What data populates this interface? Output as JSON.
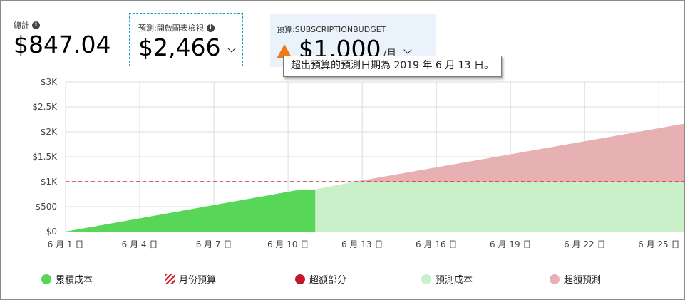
{
  "cards": {
    "total": {
      "label": "總計",
      "value": "$847.04"
    },
    "forecast": {
      "label": "預測:開啟圖表檢視",
      "value": "$2,466"
    },
    "budget": {
      "label": "預算:SUBSCRIPTIONBUDGET",
      "value": "$1,000",
      "unit": "/月"
    }
  },
  "tooltip": "超出預算的預測日期為 2019 年 6 月 13 日。",
  "icons": {
    "info": "info-icon",
    "chevron": "chevron-down-icon",
    "warning": "warning-icon"
  },
  "colors": {
    "cumulative": "#57d657",
    "forecast": "#c9f0c9",
    "over_forecast": "#e7b0b3",
    "over": "#c0182d",
    "budget_line": "#c9363b",
    "grid": "#dcdcdc"
  },
  "legend": [
    {
      "label": "累積成本",
      "kind": "dot",
      "color": "#57d657"
    },
    {
      "label": "月份預算",
      "kind": "hatch",
      "color": "#c9363b"
    },
    {
      "label": "超額部分",
      "kind": "dot",
      "color": "#c0182d"
    },
    {
      "label": "預測成本",
      "kind": "dot",
      "color": "#c9f0c9"
    },
    {
      "label": "超額預測",
      "kind": "dot",
      "color": "#e7b0b3"
    }
  ],
  "chart_data": {
    "type": "area",
    "x_unit": "day of June 2019",
    "xlim": [
      1,
      26
    ],
    "ylim": [
      0,
      3000
    ],
    "y_ticks": [
      0,
      500,
      1000,
      1500,
      2000,
      2500,
      3000
    ],
    "y_tick_labels": [
      "$0",
      "$500",
      "$1K",
      "$1.5K",
      "$2K",
      "$2.5K",
      "$3K"
    ],
    "x_ticks": [
      1,
      4,
      7,
      10,
      13,
      16,
      19,
      22,
      25
    ],
    "x_tick_labels": [
      "6 月 1 日",
      "6 月 4 日",
      "6 月 7 日",
      "6 月 10 日",
      "6 月 13 日",
      "6 月 16 日",
      "6 月 19 日",
      "6 月 22 日",
      "6 月 25 日"
    ],
    "grid": true,
    "budget": 1000,
    "series": [
      {
        "name": "累積成本",
        "x": [
          1,
          10.3,
          11.1
        ],
        "y": [
          0,
          825,
          847
        ]
      },
      {
        "name": "預測成本",
        "x": [
          11.1,
          12.7,
          26
        ],
        "y": [
          847,
          1000,
          2160
        ]
      }
    ]
  }
}
